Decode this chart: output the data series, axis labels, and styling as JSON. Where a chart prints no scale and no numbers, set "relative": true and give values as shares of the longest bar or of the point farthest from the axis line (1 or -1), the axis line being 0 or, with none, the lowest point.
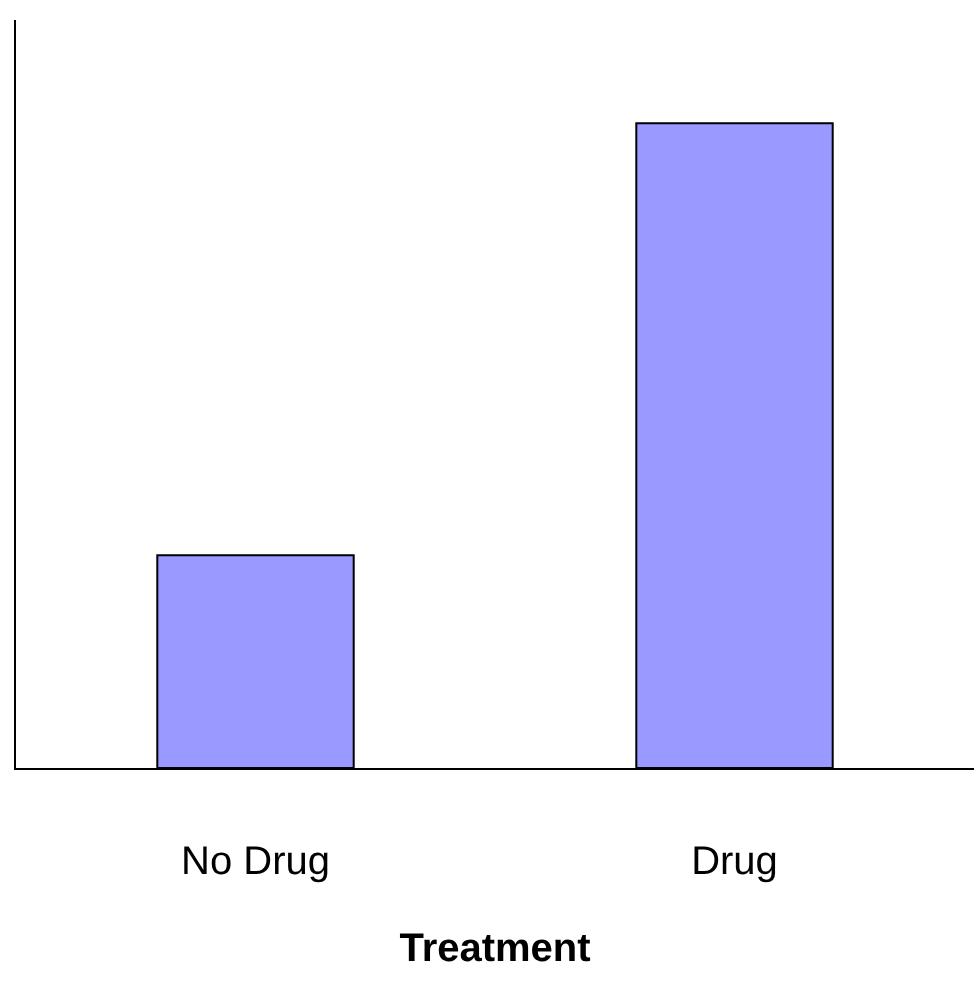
{
  "chart_data": {
    "type": "bar",
    "xlabel": "Treatment",
    "categories": [
      "No Drug",
      "Drug"
    ],
    "values": [
      0.33,
      1
    ],
    "color": "#9999ff",
    "relative": true,
    "grid": false,
    "legend": false
  }
}
